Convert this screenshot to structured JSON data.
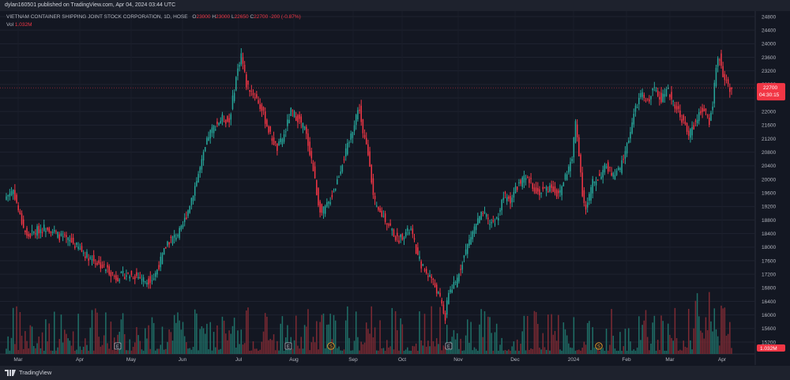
{
  "header": {
    "publish_text": "dylan160501 published on TradingView.com, Apr 04, 2024 03:44 UTC"
  },
  "legend": {
    "symbol": "VIETNAM CONTAINER SHIPPING JOINT STOCK CORPORATION, 1D, HOSE",
    "o_label": "O",
    "o_value": "23000",
    "h_label": "H",
    "h_value": "23000",
    "l_label": "L",
    "l_value": "22650",
    "c_label": "C",
    "c_value": "22700",
    "change": "-200 (-0.87%)",
    "vol_label": "Vol",
    "vol_value": "1.032M"
  },
  "price_tag": {
    "price": "22700",
    "countdown": "04:30:15"
  },
  "vol_tag": "1.032M",
  "footer": {
    "brand": "TradingView"
  },
  "colors": {
    "up": "#26a69a",
    "down": "#f23645",
    "up_vol": "#1f6f67",
    "down_vol": "#7d2a33",
    "background": "#131722"
  },
  "chart_data": {
    "type": "candlestick",
    "title": "VIETNAM CONTAINER SHIPPING JOINT STOCK CORPORATION, 1D, HOSE",
    "y_axis_ticks": [
      24800,
      24400,
      24000,
      23600,
      23200,
      22800,
      22400,
      22000,
      21600,
      21200,
      20800,
      20400,
      20000,
      19600,
      19200,
      18800,
      18400,
      18000,
      17600,
      17200,
      16800,
      16400,
      16000,
      15600,
      15200
    ],
    "ylim": [
      15100,
      24900
    ],
    "x_axis_labels": [
      "Mar",
      "Apr",
      "May",
      "Jun",
      "Jul",
      "Aug",
      "Sep",
      "Oct",
      "Nov",
      "Dec",
      "2024",
      "Feb",
      "Mar",
      "Apr"
    ],
    "last_close": 22700,
    "events": [
      {
        "type": "E",
        "label": "E",
        "month": "May"
      },
      {
        "type": "E",
        "label": "E",
        "month": "Aug"
      },
      {
        "type": "S",
        "label": "S",
        "month": "Aug"
      },
      {
        "type": "E",
        "label": "E",
        "month": "Nov"
      },
      {
        "type": "S",
        "label": "S",
        "month": "Jan"
      }
    ],
    "close_path": [
      [
        0,
        19500
      ],
      [
        4,
        19700
      ],
      [
        8,
        18900
      ],
      [
        12,
        18300
      ],
      [
        18,
        18500
      ],
      [
        24,
        18600
      ],
      [
        30,
        18350
      ],
      [
        38,
        18150
      ],
      [
        46,
        17800
      ],
      [
        54,
        17500
      ],
      [
        60,
        17300
      ],
      [
        64,
        17100
      ],
      [
        70,
        17200
      ],
      [
        76,
        17150
      ],
      [
        82,
        17000
      ],
      [
        86,
        17100
      ],
      [
        90,
        17600
      ],
      [
        94,
        18150
      ],
      [
        98,
        18300
      ],
      [
        102,
        18500
      ],
      [
        106,
        19100
      ],
      [
        110,
        19800
      ],
      [
        114,
        20500
      ],
      [
        118,
        21300
      ],
      [
        122,
        21600
      ],
      [
        126,
        21800
      ],
      [
        130,
        21700
      ],
      [
        134,
        23000
      ],
      [
        137,
        23700
      ],
      [
        140,
        22800
      ],
      [
        143,
        22600
      ],
      [
        146,
        22400
      ],
      [
        150,
        21900
      ],
      [
        154,
        21300
      ],
      [
        158,
        20900
      ],
      [
        162,
        21300
      ],
      [
        166,
        22000
      ],
      [
        170,
        21800
      ],
      [
        174,
        21500
      ],
      [
        178,
        20600
      ],
      [
        182,
        19300
      ],
      [
        184,
        19000
      ],
      [
        188,
        19300
      ],
      [
        192,
        19800
      ],
      [
        196,
        20500
      ],
      [
        200,
        21100
      ],
      [
        204,
        21900
      ],
      [
        206,
        22100
      ],
      [
        208,
        21300
      ],
      [
        210,
        21000
      ],
      [
        212,
        20500
      ],
      [
        214,
        19500
      ],
      [
        216,
        19100
      ],
      [
        220,
        18900
      ],
      [
        224,
        18600
      ],
      [
        228,
        18200
      ],
      [
        232,
        18400
      ],
      [
        236,
        18500
      ],
      [
        240,
        17700
      ],
      [
        244,
        17300
      ],
      [
        248,
        17100
      ],
      [
        252,
        16600
      ],
      [
        254,
        16300
      ],
      [
        256,
        15900
      ],
      [
        258,
        16700
      ],
      [
        262,
        16900
      ],
      [
        266,
        17600
      ],
      [
        270,
        18200
      ],
      [
        274,
        18700
      ],
      [
        278,
        19000
      ],
      [
        282,
        18700
      ],
      [
        286,
        18800
      ],
      [
        290,
        19500
      ],
      [
        294,
        19400
      ],
      [
        298,
        19800
      ],
      [
        302,
        20000
      ],
      [
        306,
        19900
      ],
      [
        310,
        19600
      ],
      [
        314,
        19700
      ],
      [
        318,
        19800
      ],
      [
        322,
        19500
      ],
      [
        326,
        20100
      ],
      [
        330,
        20600
      ],
      [
        332,
        21700
      ],
      [
        334,
        20800
      ],
      [
        336,
        19600
      ],
      [
        338,
        19100
      ],
      [
        342,
        19900
      ],
      [
        346,
        20100
      ],
      [
        350,
        20400
      ],
      [
        354,
        20100
      ],
      [
        358,
        20300
      ],
      [
        362,
        21000
      ],
      [
        366,
        21900
      ],
      [
        370,
        22500
      ],
      [
        374,
        22300
      ],
      [
        378,
        22700
      ],
      [
        382,
        22400
      ],
      [
        386,
        22600
      ],
      [
        390,
        22200
      ],
      [
        394,
        21800
      ],
      [
        398,
        21300
      ],
      [
        402,
        21700
      ],
      [
        406,
        22100
      ],
      [
        410,
        21700
      ],
      [
        412,
        22200
      ],
      [
        414,
        23400
      ],
      [
        416,
        23600
      ],
      [
        418,
        23100
      ],
      [
        420,
        22900
      ],
      [
        422,
        22700
      ]
    ]
  }
}
